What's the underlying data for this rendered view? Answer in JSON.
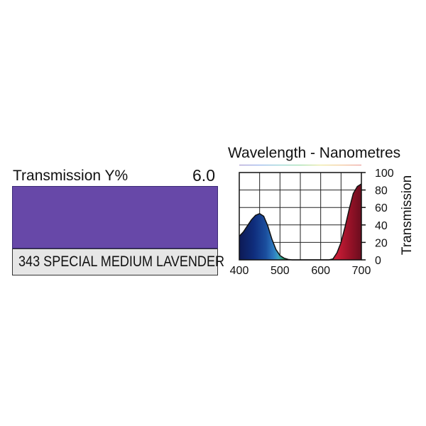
{
  "filter": {
    "transmission_label": "Transmission Y%",
    "transmission_value": "6.0",
    "name": "343 SPECIAL MEDIUM LAVENDER",
    "swatch_color": "#6748a8"
  },
  "chart_data": {
    "type": "area",
    "title": "Wavelength - Nanometres",
    "xlabel": "",
    "ylabel": "Transmission",
    "xlim": [
      400,
      700
    ],
    "ylim": [
      0,
      100
    ],
    "x_ticks": [
      "400",
      "500",
      "600",
      "700"
    ],
    "y_ticks": [
      "0",
      "20",
      "40",
      "60",
      "80",
      "100"
    ],
    "grid": true,
    "x": [
      400,
      410,
      420,
      430,
      440,
      450,
      460,
      470,
      480,
      490,
      500,
      510,
      520,
      530,
      540,
      550,
      560,
      570,
      580,
      590,
      600,
      610,
      620,
      630,
      640,
      650,
      660,
      670,
      680,
      690,
      700
    ],
    "series": [
      {
        "values": [
          27,
          32,
          39,
          46,
          51,
          53,
          50,
          39,
          24,
          12,
          5,
          2,
          0.5,
          0,
          0,
          0,
          0,
          0,
          0,
          0,
          0,
          0,
          0,
          1,
          8,
          20,
          38,
          58,
          76,
          84,
          87
        ]
      }
    ]
  }
}
